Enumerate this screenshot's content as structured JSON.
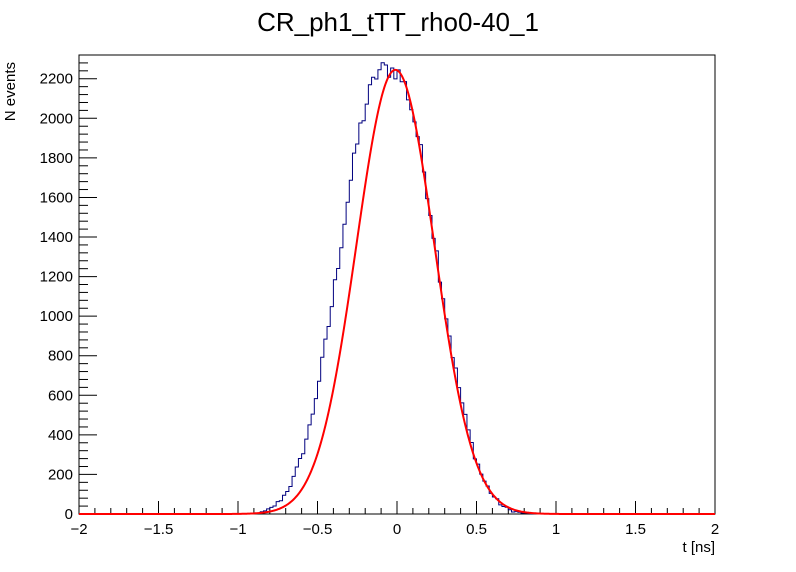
{
  "chart_data": {
    "type": "line",
    "title": "CR_ph1_tTT_rho0-40_1",
    "xlabel": "t [ns]",
    "ylabel": "N events",
    "xlim": [
      -2,
      2
    ],
    "ylim": [
      0,
      2320
    ],
    "grid": false,
    "legend": "none",
    "x_ticks": [
      -2,
      -1.5,
      -1,
      -0.5,
      0,
      0.5,
      1,
      1.5,
      2
    ],
    "x_tick_labels": [
      "−2",
      "−1.5",
      "−1",
      "−0.5",
      "0",
      "0.5",
      "1",
      "1.5",
      "2"
    ],
    "y_ticks": [
      0,
      200,
      400,
      600,
      800,
      1000,
      1200,
      1400,
      1600,
      1800,
      2000,
      2200
    ],
    "y_tick_labels": [
      "0",
      "200",
      "400",
      "600",
      "800",
      "1000",
      "1200",
      "1400",
      "1600",
      "1800",
      "2000",
      "2200"
    ],
    "series": [
      {
        "style": "histogram-step",
        "color": "#00007f",
        "bin_width": 0.02,
        "x": [
          -0.9,
          -0.84,
          -0.78,
          -0.72,
          -0.66,
          -0.6,
          -0.54,
          -0.48,
          -0.42,
          -0.36,
          -0.3,
          -0.24,
          -0.18,
          -0.12,
          -0.06,
          0.0,
          0.06,
          0.12,
          0.18,
          0.24,
          0.3,
          0.36,
          0.42,
          0.48,
          0.54,
          0.6,
          0.66,
          0.72,
          0.78,
          0.84,
          0.9
        ],
        "values": [
          2,
          10,
          35,
          80,
          160,
          290,
          470,
          720,
          1000,
          1320,
          1640,
          1920,
          2110,
          2240,
          2250,
          2240,
          2150,
          1960,
          1690,
          1370,
          1050,
          760,
          520,
          320,
          180,
          95,
          42,
          16,
          6,
          2,
          0
        ]
      },
      {
        "style": "fit-curve",
        "color": "#ff0000",
        "function": "gaussian",
        "amplitude": 2245,
        "mean": -0.01,
        "sigma": 0.245
      }
    ]
  }
}
